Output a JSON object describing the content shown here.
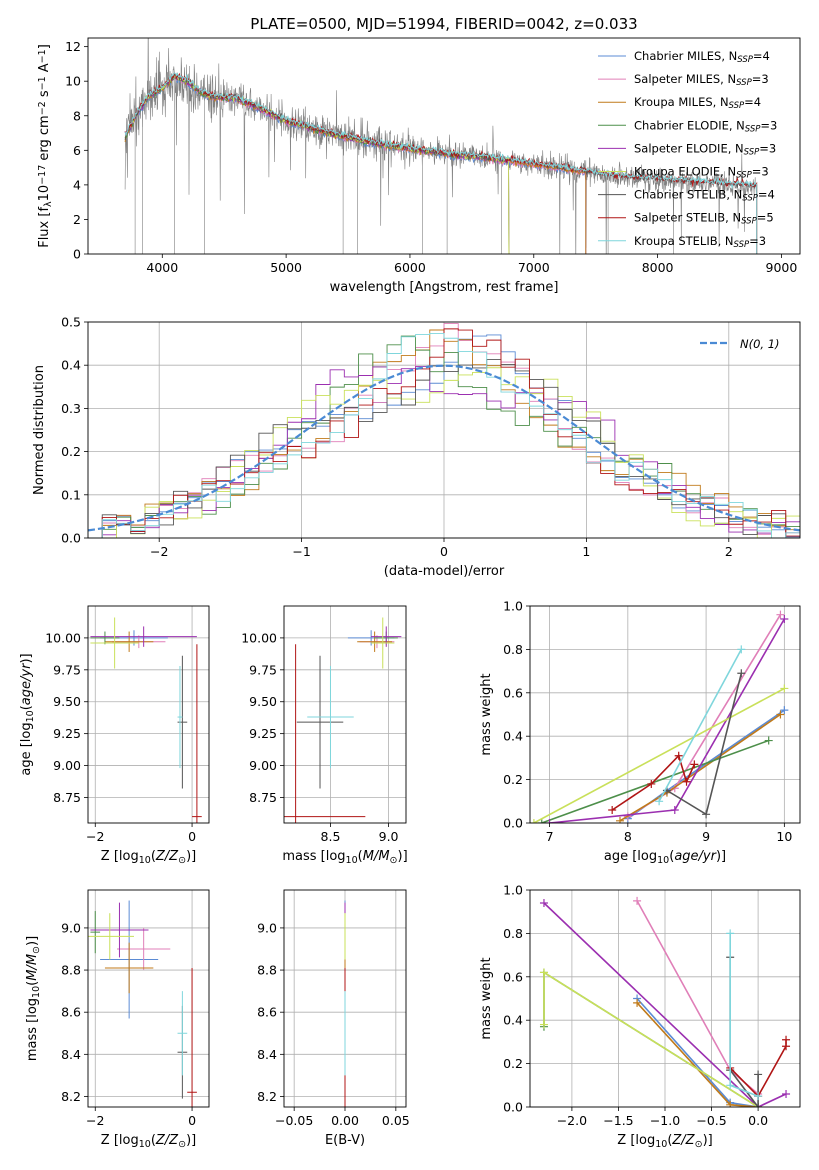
{
  "colors": {
    "Chabrier MILES": "#5b8bd4",
    "Salpeter MILES": "#e07fb8",
    "Kroupa MILES": "#c07a1a",
    "Chabrier ELODIE": "#4d8f4a",
    "Salpeter ELODIE": "#9b2fb0",
    "Kroupa ELODIE": "#c9e05a",
    "Chabrier STELIB": "#555555",
    "Salpeter STELIB": "#b01515",
    "Kroupa STELIB": "#7fd6dc",
    "data": "#808080",
    "gauss": "#4a8ad4",
    "grid": "#b0b0b0"
  },
  "chart_data": [
    {
      "id": "spectrum",
      "type": "line",
      "title": "PLATE=0500, MJD=51994, FIBERID=0042, z=0.033",
      "xlabel": "wavelength [Angstrom, rest frame]",
      "ylabel": "Flux [fλ10⁻¹⁷ erg cm⁻² s⁻¹ A⁻¹]",
      "xlim": [
        3400,
        9150
      ],
      "ylim": [
        0,
        12.5
      ],
      "xticks": [
        4000,
        5000,
        6000,
        7000,
        8000,
        9000
      ],
      "yticks": [
        0,
        2,
        4,
        6,
        8,
        10,
        12
      ],
      "grid": false,
      "legend_position": "top-right",
      "legend": [
        {
          "name": "Chabrier MILES",
          "nssp": "4"
        },
        {
          "name": "Salpeter MILES",
          "nssp": "3"
        },
        {
          "name": "Kroupa MILES",
          "nssp": "4"
        },
        {
          "name": "Chabrier ELODIE",
          "nssp": "3"
        },
        {
          "name": "Salpeter ELODIE",
          "nssp": "3"
        },
        {
          "name": "Kroupa ELODIE",
          "nssp": "3"
        },
        {
          "name": "Chabrier STELIB",
          "nssp": "4"
        },
        {
          "name": "Salpeter STELIB",
          "nssp": "5"
        },
        {
          "name": "Kroupa STELIB",
          "nssp": "3"
        }
      ],
      "nssp_label": "N",
      "nssp_sub": "SSP",
      "continuum_nodes": {
        "x": [
          3700,
          3800,
          3900,
          4000,
          4100,
          4200,
          4300,
          4400,
          4600,
          4800,
          5000,
          5200,
          5400,
          5600,
          5800,
          6000,
          6200,
          6400,
          6600,
          6800,
          7000,
          7200,
          7400,
          7600,
          7800,
          8000,
          8200,
          8400,
          8600,
          8800
        ],
        "y": [
          6.8,
          8.2,
          9.2,
          9.6,
          10.3,
          10.0,
          9.4,
          9.1,
          9.0,
          8.4,
          7.7,
          7.3,
          6.9,
          6.6,
          6.3,
          6.1,
          5.9,
          5.7,
          5.6,
          5.4,
          5.2,
          5.0,
          4.8,
          4.5,
          4.4,
          4.3,
          4.2,
          4.1,
          4.0,
          3.9
        ]
      },
      "model_x_ranges": {
        "MILES": [
          3700,
          7420
        ],
        "ELODIE": [
          3700,
          6800
        ],
        "STELIB": [
          3700,
          8800
        ]
      }
    },
    {
      "id": "residuals",
      "type": "histogram",
      "xlabel": "(data-model)/error",
      "ylabel": "Normed distribution",
      "xlim": [
        -2.5,
        2.5
      ],
      "ylim": [
        0,
        0.5
      ],
      "xticks": [
        -2,
        -1,
        0,
        1,
        2
      ],
      "yticks": [
        0.0,
        0.1,
        0.2,
        0.3,
        0.4,
        0.5
      ],
      "grid": true,
      "legend_position": "top-right",
      "gauss_label": "N(0, 1)",
      "bin_width": 0.1,
      "bins_start": -2.5
    },
    {
      "id": "age-vs-Z",
      "type": "errorbar",
      "xlabel": "Z [log10(Z/Z⊙)]",
      "ylabel": "age  [log10(age/yr)]",
      "xlim": [
        -2.15,
        0.35
      ],
      "ylim": [
        8.55,
        10.25
      ],
      "xticks": [
        -2,
        0
      ],
      "yticks": [
        8.75,
        9.0,
        9.25,
        9.5,
        9.75,
        10.0
      ],
      "grid": true,
      "points": [
        {
          "series": "Chabrier MILES",
          "x": -1.2,
          "y": 10.0,
          "xerr": 0.7,
          "yerr": 0.06
        },
        {
          "series": "Salpeter MILES",
          "x": -1.1,
          "y": 9.97,
          "xerr": 0.55,
          "yerr": 0.05
        },
        {
          "series": "Kroupa MILES",
          "x": -1.3,
          "y": 9.97,
          "xerr": 0.5,
          "yerr": 0.08
        },
        {
          "series": "Chabrier ELODIE",
          "x": -1.8,
          "y": 10.0,
          "xerr": 0.3,
          "yerr": 0.05
        },
        {
          "series": "Salpeter ELODIE",
          "x": -1.0,
          "y": 10.01,
          "xerr": 1.1,
          "yerr": 0.08
        },
        {
          "series": "Kroupa ELODIE",
          "x": -1.6,
          "y": 9.96,
          "xerr": 0.5,
          "yerr": 0.2
        },
        {
          "series": "Chabrier STELIB",
          "x": -0.2,
          "y": 9.34,
          "xerr": 0.1,
          "yerr": 0.52
        },
        {
          "series": "Salpeter STELIB",
          "x": 0.1,
          "y": 8.6,
          "xerr": 0.1,
          "yerr": 1.35
        },
        {
          "series": "Kroupa STELIB",
          "x": -0.25,
          "y": 9.38,
          "xerr": 0.05,
          "yerr": 0.4
        }
      ]
    },
    {
      "id": "age-vs-mass",
      "type": "errorbar",
      "xlabel": "mass [log10(M/M⊙)]",
      "ylabel": "",
      "xlim": [
        8.1,
        9.15
      ],
      "ylim": [
        8.55,
        10.25
      ],
      "xticks": [
        8.5,
        9.0
      ],
      "yticks": [
        8.75,
        9.0,
        9.25,
        9.5,
        9.75,
        10.0
      ],
      "grid": true,
      "points": [
        {
          "series": "Chabrier MILES",
          "x": 8.85,
          "y": 10.0,
          "xerr": 0.2,
          "yerr": 0.06
        },
        {
          "series": "Salpeter MILES",
          "x": 8.9,
          "y": 9.97,
          "xerr": 0.15,
          "yerr": 0.05
        },
        {
          "series": "Kroupa MILES",
          "x": 8.88,
          "y": 9.97,
          "xerr": 0.15,
          "yerr": 0.08
        },
        {
          "series": "Chabrier ELODIE",
          "x": 8.98,
          "y": 10.0,
          "xerr": 0.1,
          "yerr": 0.05
        },
        {
          "series": "Salpeter ELODIE",
          "x": 8.98,
          "y": 10.01,
          "xerr": 0.13,
          "yerr": 0.08
        },
        {
          "series": "Kroupa ELODIE",
          "x": 8.95,
          "y": 9.96,
          "xerr": 0.1,
          "yerr": 0.2
        },
        {
          "series": "Chabrier STELIB",
          "x": 8.41,
          "y": 9.34,
          "xerr": 0.2,
          "yerr": 0.52
        },
        {
          "series": "Salpeter STELIB",
          "x": 8.2,
          "y": 8.6,
          "xerr": 0.6,
          "yerr": 1.35
        },
        {
          "series": "Kroupa STELIB",
          "x": 8.5,
          "y": 9.38,
          "xerr": 0.2,
          "yerr": 0.4
        }
      ]
    },
    {
      "id": "weight-vs-age",
      "type": "line",
      "xlabel": "age  [log10(age/yr)]",
      "ylabel": "mass weight",
      "xlim": [
        6.75,
        10.2
      ],
      "ylim": [
        0,
        1.0
      ],
      "xticks": [
        7,
        8,
        9,
        10
      ],
      "yticks": [
        0.0,
        0.2,
        0.4,
        0.6,
        0.8,
        1.0
      ],
      "grid": true,
      "series": [
        {
          "name": "Chabrier MILES",
          "x": [
            8.0,
            8.5,
            10.0
          ],
          "y": [
            0.02,
            0.15,
            0.52
          ]
        },
        {
          "name": "Salpeter MILES",
          "x": [
            8.0,
            8.6,
            9.95
          ],
          "y": [
            0.03,
            0.16,
            0.96
          ]
        },
        {
          "name": "Kroupa MILES",
          "x": [
            7.9,
            8.5,
            9.95
          ],
          "y": [
            0.01,
            0.14,
            0.5
          ]
        },
        {
          "name": "Chabrier ELODIE",
          "x": [
            6.9,
            9.8
          ],
          "y": [
            0.0,
            0.38
          ]
        },
        {
          "name": "Salpeter ELODIE",
          "x": [
            7.0,
            8.6,
            10.0
          ],
          "y": [
            0.0,
            0.06,
            0.94
          ]
        },
        {
          "name": "Kroupa ELODIE",
          "x": [
            6.8,
            10.0
          ],
          "y": [
            0.0,
            0.62
          ]
        },
        {
          "name": "Chabrier STELIB",
          "x": [
            8.5,
            9.0,
            9.45
          ],
          "y": [
            0.15,
            0.04,
            0.69
          ]
        },
        {
          "name": "Salpeter STELIB",
          "x": [
            7.8,
            8.3,
            8.65,
            8.75,
            8.85
          ],
          "y": [
            0.06,
            0.18,
            0.31,
            0.19,
            0.27
          ]
        },
        {
          "name": "Kroupa STELIB",
          "x": [
            8.4,
            9.45
          ],
          "y": [
            0.1,
            0.8
          ]
        }
      ]
    },
    {
      "id": "mass-vs-Z",
      "type": "errorbar",
      "xlabel": "Z [log10(Z/Z⊙)]",
      "ylabel": "mass [log10(M/M⊙)]",
      "xlim": [
        -2.15,
        0.35
      ],
      "ylim": [
        8.15,
        9.18
      ],
      "xticks": [
        -2,
        0
      ],
      "yticks": [
        8.2,
        8.4,
        8.6,
        8.8,
        9.0
      ],
      "grid": true,
      "points": [
        {
          "series": "Chabrier MILES",
          "x": -1.3,
          "y": 8.85,
          "xerr": 0.6,
          "yerr": 0.28
        },
        {
          "series": "Salpeter MILES",
          "x": -1.0,
          "y": 8.9,
          "xerr": 0.55,
          "yerr": 0.1
        },
        {
          "series": "Kroupa MILES",
          "x": -1.3,
          "y": 8.81,
          "xerr": 0.5,
          "yerr": 0.12
        },
        {
          "series": "Chabrier ELODIE",
          "x": -2.0,
          "y": 8.98,
          "xerr": 0.1,
          "yerr": 0.1
        },
        {
          "series": "Salpeter ELODIE",
          "x": -1.5,
          "y": 8.99,
          "xerr": 0.6,
          "yerr": 0.13
        },
        {
          "series": "Kroupa ELODIE",
          "x": -1.7,
          "y": 8.96,
          "xerr": 0.5,
          "yerr": 0.11
        },
        {
          "series": "Chabrier STELIB",
          "x": -0.2,
          "y": 8.41,
          "xerr": 0.1,
          "yerr": 0.22
        },
        {
          "series": "Salpeter STELIB",
          "x": 0.0,
          "y": 8.22,
          "xerr": 0.1,
          "yerr": 0.59
        },
        {
          "series": "Kroupa STELIB",
          "x": -0.2,
          "y": 8.5,
          "xerr": 0.1,
          "yerr": 0.2
        }
      ]
    },
    {
      "id": "mass-vs-EBV",
      "type": "errorbar",
      "xlabel": "E(B-V)",
      "ylabel": "",
      "xlim": [
        -0.06,
        0.06
      ],
      "ylim": [
        8.15,
        9.18
      ],
      "xticks": [
        -0.05,
        0.0,
        0.05
      ],
      "yticks": [
        8.2,
        8.4,
        8.6,
        8.8,
        9.0
      ],
      "grid": true,
      "points": [
        {
          "series": "Chabrier MILES",
          "x": 0.0,
          "y": 8.85,
          "xerr": 0.0,
          "yerr": 0.28
        },
        {
          "series": "Salpeter MILES",
          "x": 0.0,
          "y": 8.9,
          "xerr": 0.0,
          "yerr": 0.1
        },
        {
          "series": "Kroupa MILES",
          "x": 0.0,
          "y": 8.81,
          "xerr": 0.0,
          "yerr": 0.12
        },
        {
          "series": "Chabrier ELODIE",
          "x": 0.0,
          "y": 8.98,
          "xerr": 0.0,
          "yerr": 0.1
        },
        {
          "series": "Salpeter ELODIE",
          "x": 0.0,
          "y": 8.99,
          "xerr": 0.0,
          "yerr": 0.13
        },
        {
          "series": "Kroupa ELODIE",
          "x": 0.0,
          "y": 8.96,
          "xerr": 0.0,
          "yerr": 0.11
        },
        {
          "series": "Chabrier STELIB",
          "x": 0.0,
          "y": 8.41,
          "xerr": 0.0,
          "yerr": 0.22
        },
        {
          "series": "Salpeter STELIB",
          "x": 0.0,
          "y": 8.22,
          "xerr": 0.0,
          "yerr": 0.59
        },
        {
          "series": "Kroupa STELIB",
          "x": 0.0,
          "y": 8.5,
          "xerr": 0.0,
          "yerr": 0.2
        }
      ]
    },
    {
      "id": "weight-vs-Z",
      "type": "line",
      "xlabel": "Z [log10(Z/Z⊙)]",
      "ylabel": "mass weight",
      "xlim": [
        -2.45,
        0.45
      ],
      "ylim": [
        0,
        1.0
      ],
      "xticks": [
        -2.0,
        -1.5,
        -1.0,
        -0.5,
        0.0
      ],
      "yticks": [
        0.0,
        0.2,
        0.4,
        0.6,
        0.8,
        1.0
      ],
      "grid": true,
      "series": [
        {
          "name": "Chabrier MILES",
          "x": [
            -1.3,
            -0.3,
            0.0
          ],
          "y": [
            0.5,
            0.02,
            0.0
          ]
        },
        {
          "name": "Salpeter MILES",
          "x": [
            -1.3,
            -0.3,
            0.0
          ],
          "y": [
            0.95,
            0.17,
            0.06
          ]
        },
        {
          "name": "Kroupa MILES",
          "x": [
            -1.3,
            -0.3,
            0.0
          ],
          "y": [
            0.48,
            0.01,
            0.0
          ]
        },
        {
          "name": "Chabrier ELODIE",
          "x": [
            -2.3,
            -2.3,
            0.0
          ],
          "y": [
            0.37,
            0.62,
            0.0
          ]
        },
        {
          "name": "Salpeter ELODIE",
          "x": [
            -2.3,
            0.0,
            0.3
          ],
          "y": [
            0.94,
            0.0,
            0.06
          ]
        },
        {
          "name": "Kroupa ELODIE",
          "x": [
            -2.3,
            -2.3,
            0.0
          ],
          "y": [
            0.38,
            0.62,
            0.0
          ]
        },
        {
          "name": "Chabrier STELIB",
          "x": [
            -0.3,
            -0.3,
            0.0,
            0.0
          ],
          "y": [
            0.69,
            0.17,
            0.0,
            0.15
          ]
        },
        {
          "name": "Salpeter STELIB",
          "x": [
            -0.3,
            0.0,
            0.3,
            0.3
          ],
          "y": [
            0.18,
            0.05,
            0.28,
            0.31
          ]
        },
        {
          "name": "Kroupa STELIB",
          "x": [
            -0.3,
            -0.3,
            0.0
          ],
          "y": [
            0.8,
            0.1,
            0.05
          ]
        }
      ]
    }
  ]
}
